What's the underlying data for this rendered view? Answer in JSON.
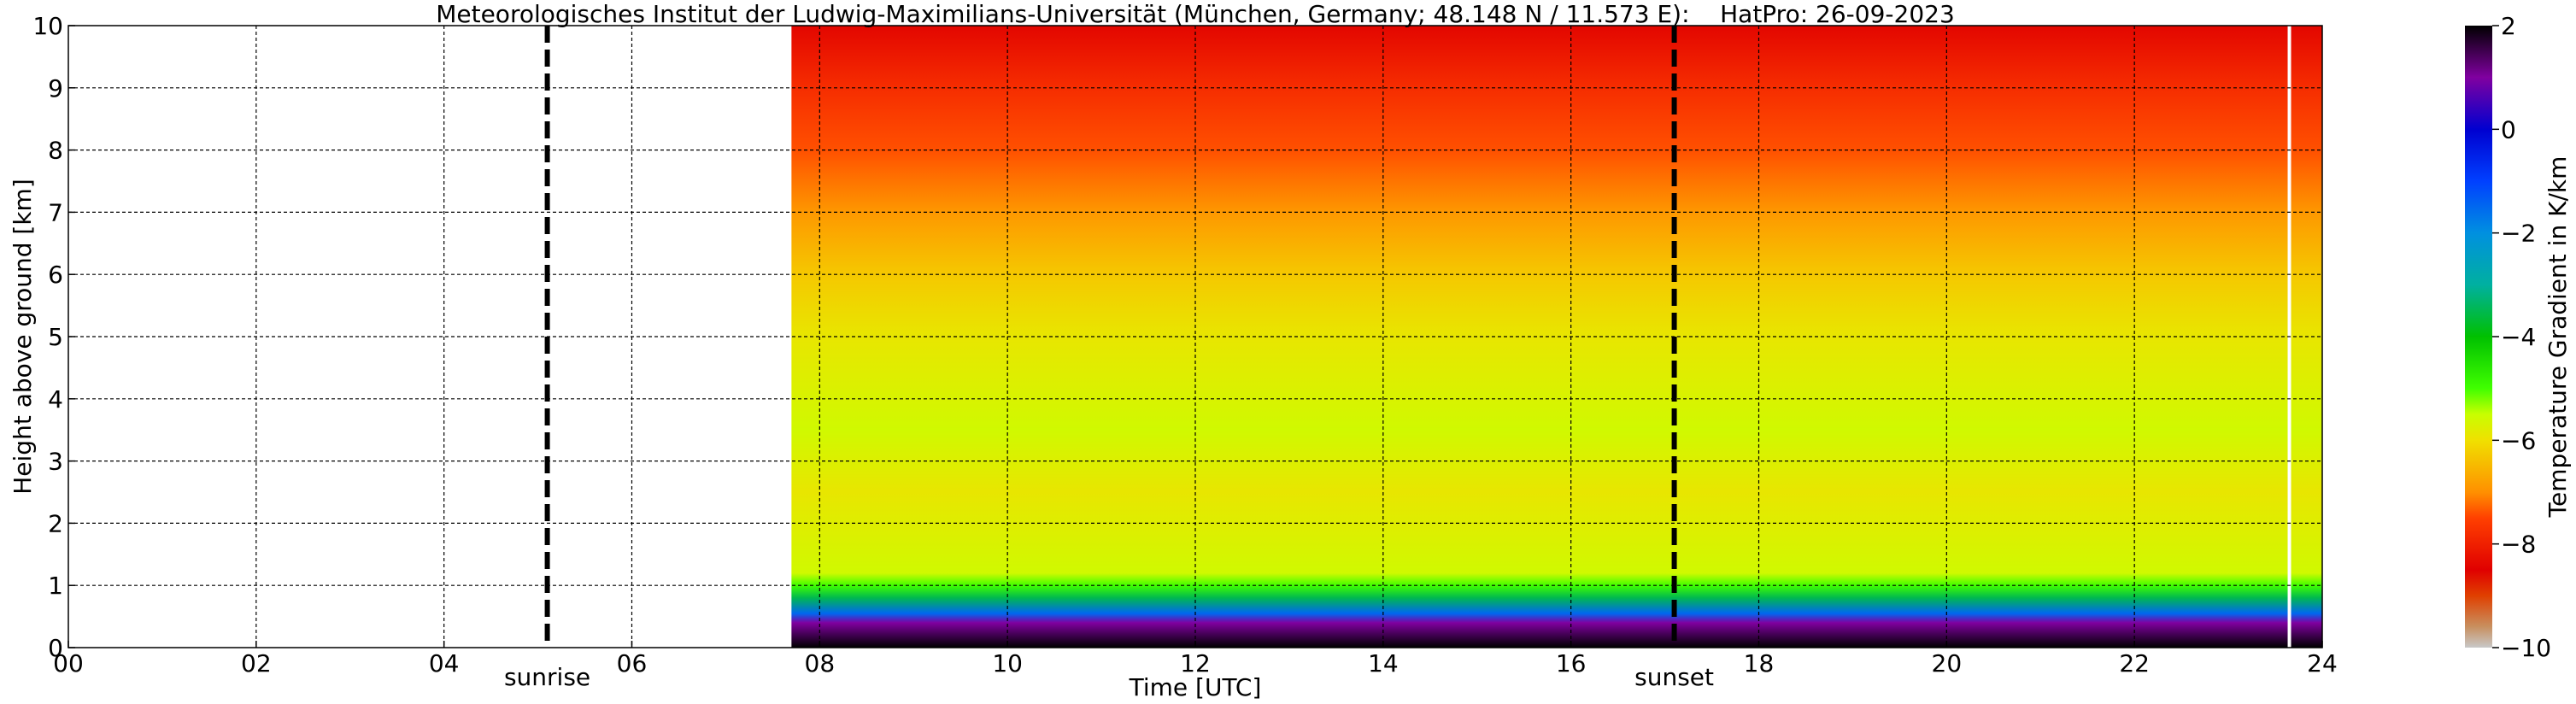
{
  "chart_data": {
    "type": "heatmap",
    "title": "Meteorologisches Institut der Ludwig-Maximilians-Universität (München, Germany; 48.148 N / 11.573 E):    HatPro: 26-09-2023",
    "xlabel": "Time [UTC]",
    "ylabel": "Height above ground [km]",
    "colorbar_label": "Temperature Gradient in K/km",
    "xlim": [
      0,
      24
    ],
    "ylim": [
      0,
      10
    ],
    "x_ticks": [
      {
        "value": 0,
        "label": "00"
      },
      {
        "value": 2,
        "label": "02"
      },
      {
        "value": 4,
        "label": "04"
      },
      {
        "value": 6,
        "label": "06"
      },
      {
        "value": 8,
        "label": "08"
      },
      {
        "value": 10,
        "label": "10"
      },
      {
        "value": 12,
        "label": "12"
      },
      {
        "value": 14,
        "label": "14"
      },
      {
        "value": 16,
        "label": "16"
      },
      {
        "value": 18,
        "label": "18"
      },
      {
        "value": 20,
        "label": "20"
      },
      {
        "value": 22,
        "label": "22"
      },
      {
        "value": 24,
        "label": "24"
      }
    ],
    "y_ticks": [
      {
        "value": 0,
        "label": "0"
      },
      {
        "value": 1,
        "label": "1"
      },
      {
        "value": 2,
        "label": "2"
      },
      {
        "value": 3,
        "label": "3"
      },
      {
        "value": 4,
        "label": "4"
      },
      {
        "value": 5,
        "label": "5"
      },
      {
        "value": 6,
        "label": "6"
      },
      {
        "value": 7,
        "label": "7"
      },
      {
        "value": 8,
        "label": "8"
      },
      {
        "value": 9,
        "label": "9"
      },
      {
        "value": 10,
        "label": "10"
      }
    ],
    "colorbar": {
      "range": [
        -10,
        2
      ],
      "ticks": [
        {
          "value": 2,
          "label": "2"
        },
        {
          "value": 0,
          "label": "0"
        },
        {
          "value": -2,
          "label": "−2"
        },
        {
          "value": -4,
          "label": "−4"
        },
        {
          "value": -6,
          "label": "−6"
        },
        {
          "value": -8,
          "label": "−8"
        },
        {
          "value": -10,
          "label": "−10"
        }
      ],
      "stops": [
        {
          "value": -10,
          "color": "#c8c8c8"
        },
        {
          "value": -9.6,
          "color": "#c89060"
        },
        {
          "value": -9.0,
          "color": "#e04000"
        },
        {
          "value": -8.5,
          "color": "#e00000"
        },
        {
          "value": -7.5,
          "color": "#ff4000"
        },
        {
          "value": -7.0,
          "color": "#ff9000"
        },
        {
          "value": -6.0,
          "color": "#f0e000"
        },
        {
          "value": -5.5,
          "color": "#c8ff00"
        },
        {
          "value": -5.0,
          "color": "#40ff00"
        },
        {
          "value": -4.0,
          "color": "#00c000"
        },
        {
          "value": -3.0,
          "color": "#00b0a0"
        },
        {
          "value": -2.0,
          "color": "#0090e0"
        },
        {
          "value": -1.0,
          "color": "#0040ff"
        },
        {
          "value": 0.0,
          "color": "#0000d0"
        },
        {
          "value": 1.0,
          "color": "#8000a0"
        },
        {
          "value": 2.0,
          "color": "#000000"
        }
      ]
    },
    "data_start_time": 7.7,
    "data_end_time": 24,
    "missing_data_line_time": 23.65,
    "profile": [
      {
        "height": 0.0,
        "value": 2.0
      },
      {
        "height": 0.4,
        "value": 1.0
      },
      {
        "height": 0.55,
        "value": -1.5
      },
      {
        "height": 0.8,
        "value": -3.5
      },
      {
        "height": 1.0,
        "value": -5.0
      },
      {
        "height": 1.2,
        "value": -5.6
      },
      {
        "height": 2.5,
        "value": -5.9
      },
      {
        "height": 3.5,
        "value": -5.6
      },
      {
        "height": 5.0,
        "value": -5.9
      },
      {
        "height": 6.0,
        "value": -6.3
      },
      {
        "height": 7.0,
        "value": -6.9
      },
      {
        "height": 8.0,
        "value": -7.4
      },
      {
        "height": 9.0,
        "value": -7.8
      },
      {
        "height": 10.0,
        "value": -8.4
      }
    ],
    "markers": [
      {
        "time": 5.1,
        "label": "sunrise"
      },
      {
        "time": 17.1,
        "label": "sunset"
      }
    ],
    "grid": true
  }
}
